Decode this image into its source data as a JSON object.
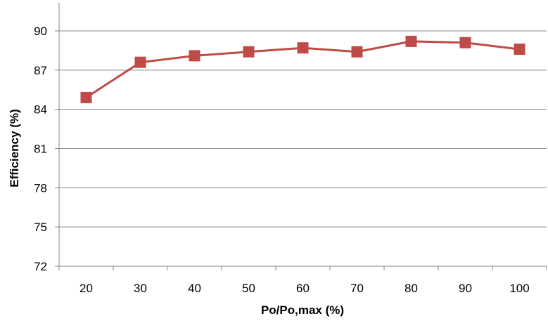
{
  "chart_data": {
    "type": "line",
    "xlabel": "Po/Po,max (%)",
    "ylabel": "Efficiency (%)",
    "categories": [
      "20",
      "30",
      "40",
      "50",
      "60",
      "70",
      "80",
      "90",
      "100"
    ],
    "series": [
      {
        "values": [
          84.9,
          87.6,
          88.1,
          88.4,
          88.7,
          88.4,
          89.2,
          89.1,
          88.6
        ]
      }
    ],
    "ylim": [
      72,
      90
    ],
    "yticks": [
      72,
      75,
      78,
      81,
      84,
      87,
      90
    ],
    "grid": true,
    "legend": "none",
    "series_color": "#BE4B48",
    "grid_color": "#868686",
    "marker": "square"
  }
}
